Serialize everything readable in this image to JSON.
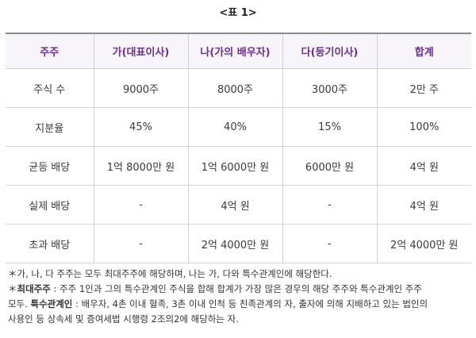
{
  "caption": "<표 1>",
  "table": {
    "headers": [
      "주주",
      "가(대표이사)",
      "나(가의 배우자)",
      "다(등기이사)",
      "합계"
    ],
    "rows": [
      [
        "주식 수",
        "9000주",
        "8000주",
        "3000주",
        "2만 주"
      ],
      [
        "지분율",
        "45%",
        "40%",
        "15%",
        "100%"
      ],
      [
        "균등 배당",
        "1억 8000만 원",
        "1억 6000만 원",
        "6000만 원",
        "4억 원"
      ],
      [
        "실제 배당",
        "-",
        "4억 원",
        "-",
        "4억 원"
      ],
      [
        "초과 배당",
        "-",
        "2억 4000만 원",
        "-",
        "2억 4000만 원"
      ]
    ]
  },
  "notes": {
    "line1": "＊가, 나, 다 주주는 모두 최대주주에 해당하며, 나는 가, 다와 특수관계인에 해당한다.",
    "line2_star": "＊",
    "line2_bold": "최대주주",
    "line2_text": " : 주주 1인과 그의 특수관계인 주식을 합해 합계가 가장 많은 경우의 해당 주주와 특수관계인 주주",
    "line3_pre": "모두. ",
    "line3_bold": "특수관계인",
    "line3_text": " : 배우자, 4촌 이내 혈족, 3촌 이내 인척 등 친족관계의 자, 출자에 의해 지배하고 있는 법인의",
    "line4": "사용인 등 상속세 및 증여세법 시행령 2조의2에 해당하는 자."
  }
}
